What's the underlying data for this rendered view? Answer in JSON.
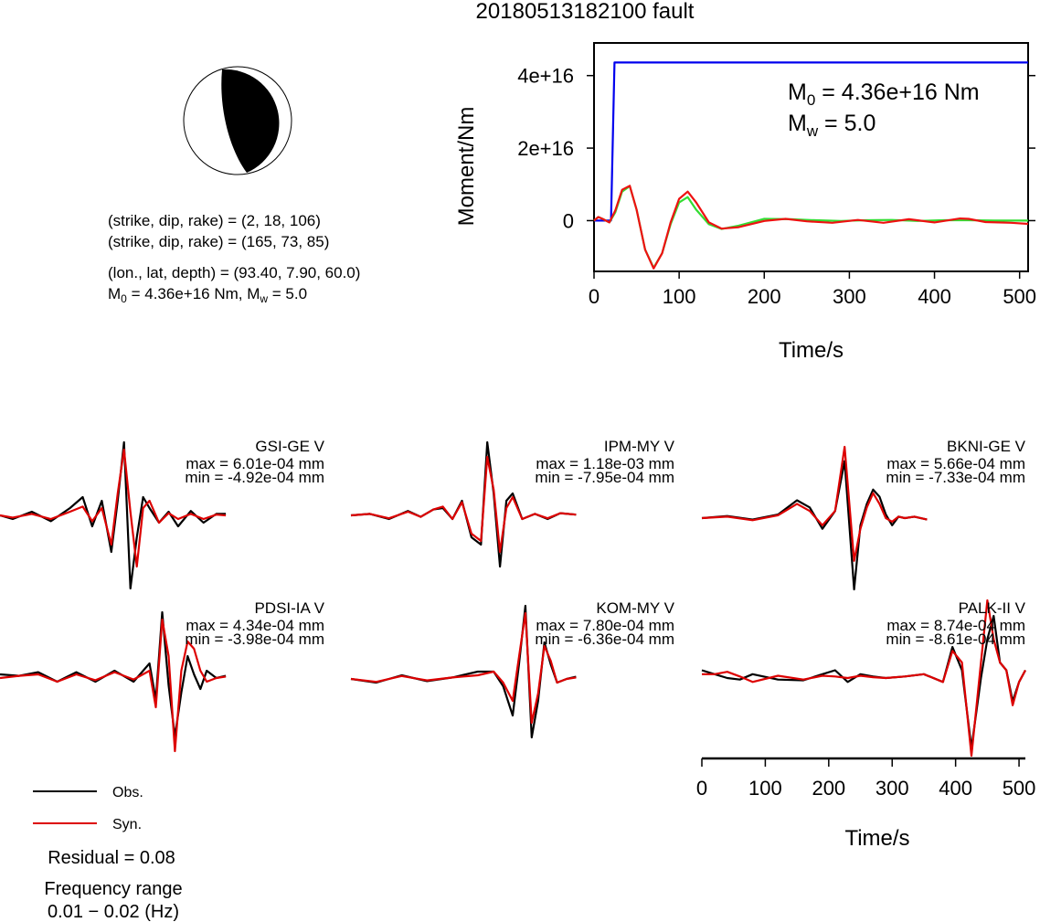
{
  "title": "20180513182100 fault",
  "focal_mechanism": {
    "strike_dip_rake_1": "(strike, dip, rake) = (2, 18, 106)",
    "strike_dip_rake_2": "(strike, dip, rake) = (165, 73, 85)",
    "location": "(lon., lat, depth) = (93.40, 7.90, 60.0)",
    "moment_prefix": "M",
    "moment_sub": "0",
    "moment_mid": " = 4.36e+16 Nm, M",
    "mw_sub": "w",
    "mw_suffix": " = 5.0"
  },
  "chart_data": [
    {
      "type": "line",
      "title": "",
      "xlabel": "Time/s",
      "ylabel": "Moment/Nm",
      "xlim": [
        0,
        510
      ],
      "ylim": [
        -1.4e+16,
        4.9e+16
      ],
      "x_ticks": [
        0,
        100,
        200,
        300,
        400,
        500
      ],
      "x_tick_labels": [
        "0",
        "100",
        "200",
        "300",
        "400",
        "500"
      ],
      "y_ticks": [
        0,
        2e+16,
        4e+16
      ],
      "y_tick_labels": [
        "0",
        "2e+16",
        "4e+16"
      ],
      "annotation_m0": {
        "prefix": "M",
        "sub": "0",
        "suffix": " = 4.36e+16 Nm"
      },
      "annotation_mw": {
        "prefix": "M",
        "sub": "w",
        "suffix": " = 5.0"
      },
      "series": [
        {
          "color": "#0000ee",
          "x": [
            0,
            20,
            24,
            510
          ],
          "y": [
            0,
            0,
            4.36e+16,
            4.36e+16
          ]
        },
        {
          "color": "#33dd33",
          "x": [
            0,
            5,
            10,
            18,
            25,
            33,
            42,
            50,
            60,
            70,
            80,
            90,
            100,
            110,
            120,
            135,
            150,
            170,
            200,
            230,
            260,
            290,
            320,
            350,
            380,
            410,
            440,
            470,
            510
          ],
          "y": [
            0,
            1000000000000000.0,
            500000000000000.0,
            -500000000000000.0,
            2300000000000000.0,
            8000000000000000.0,
            9500000000000000.0,
            3000000000000000.0,
            -8000000000000000.0,
            -1.3e+16,
            -9000000000000000.0,
            -1000000000000000.0,
            5000000000000000.0,
            6500000000000000.0,
            3000000000000000.0,
            -1000000000000000.0,
            -2300000000000000.0,
            -1400000000000000.0,
            500000000000000.0,
            400000000000000.0,
            100000000000000.0,
            -100000000000000.0,
            100000000000000.0,
            200000000000000.0,
            -100000000000000.0,
            100000000000000.0,
            100000000000000.0,
            0,
            0
          ]
        },
        {
          "color": "#ee1111",
          "x": [
            0,
            5,
            10,
            18,
            25,
            33,
            42,
            50,
            60,
            70,
            80,
            90,
            100,
            110,
            120,
            135,
            150,
            170,
            200,
            225,
            250,
            280,
            310,
            340,
            370,
            400,
            430,
            440,
            460,
            490,
            510
          ],
          "y": [
            0,
            1000000000000000.0,
            500000000000000.0,
            -500000000000000.0,
            2800000000000000.0,
            8500000000000000.0,
            9600000000000000.0,
            3000000000000000.0,
            -8000000000000000.0,
            -1.32e+16,
            -9000000000000000.0,
            -500000000000000.0,
            6000000000000000.0,
            8000000000000000.0,
            5000000000000000.0,
            -500000000000000.0,
            -2200000000000000.0,
            -1800000000000000.0,
            -100000000000000.0,
            500000000000000.0,
            -200000000000000.0,
            -600000000000000.0,
            200000000000000.0,
            -600000000000000.0,
            400000000000000.0,
            -500000000000000.0,
            600000000000000.0,
            500000000000000.0,
            -400000000000000.0,
            -600000000000000.0,
            -900000000000000.0
          ]
        }
      ]
    },
    {
      "type": "line",
      "title": "GSI-GE V",
      "annotations": [
        "max = 6.01e-04 mm",
        "min = -4.92e-04 mm"
      ],
      "xlim": [
        0,
        510
      ],
      "ylim": [
        -1,
        1
      ],
      "series": [
        {
          "name": "Obs.",
          "color": "#000000",
          "x": [
            0,
            20,
            50,
            80,
            110,
            130,
            145,
            160,
            175,
            185,
            195,
            205,
            215,
            225,
            235,
            250,
            265,
            280,
            300,
            320,
            340,
            355
          ],
          "y": [
            0,
            -0.05,
            0.05,
            -0.08,
            0.1,
            0.25,
            -0.15,
            0.2,
            -0.5,
            0.2,
            1.0,
            -1.0,
            -0.3,
            0.25,
            0.1,
            -0.1,
            0.05,
            -0.15,
            0.06,
            -0.1,
            0.02,
            0.02
          ]
        },
        {
          "name": "Syn.",
          "color": "#dd0000",
          "x": [
            0,
            20,
            50,
            80,
            110,
            130,
            145,
            160,
            175,
            185,
            195,
            205,
            215,
            225,
            235,
            250,
            265,
            280,
            300,
            320,
            340,
            355
          ],
          "y": [
            0,
            -0.03,
            0.02,
            -0.05,
            0.05,
            0.12,
            -0.08,
            0.1,
            -0.4,
            0.3,
            0.9,
            0.05,
            -0.7,
            0.1,
            0.2,
            -0.1,
            0.03,
            -0.05,
            0.02,
            -0.05,
            0.01,
            0
          ]
        }
      ]
    },
    {
      "type": "line",
      "title": "IPM-MY V",
      "annotations": [
        "max = 1.18e-03 mm",
        "min = -7.95e-04 mm"
      ],
      "xlim": [
        0,
        510
      ],
      "ylim": [
        -1,
        1
      ],
      "series": [
        {
          "name": "Obs.",
          "color": "#000000",
          "x": [
            0,
            30,
            60,
            90,
            110,
            130,
            145,
            160,
            175,
            190,
            205,
            215,
            225,
            235,
            245,
            255,
            270,
            290,
            310,
            330,
            355
          ],
          "y": [
            0,
            0.02,
            -0.05,
            0.06,
            -0.02,
            0.08,
            0.1,
            -0.05,
            0.2,
            -0.3,
            -0.4,
            1.0,
            0.3,
            -0.7,
            0.2,
            0.3,
            -0.05,
            0.02,
            -0.05,
            0.03,
            0.01
          ]
        },
        {
          "name": "Syn.",
          "color": "#dd0000",
          "x": [
            0,
            30,
            60,
            90,
            110,
            130,
            145,
            160,
            175,
            190,
            205,
            215,
            225,
            235,
            245,
            255,
            270,
            290,
            310,
            330,
            355
          ],
          "y": [
            0,
            0.02,
            -0.04,
            0.05,
            -0.02,
            0.08,
            0.12,
            -0.05,
            0.18,
            -0.25,
            -0.35,
            0.8,
            0.35,
            -0.5,
            0.1,
            0.25,
            -0.05,
            0.02,
            -0.04,
            0.03,
            0.01
          ]
        }
      ]
    },
    {
      "type": "line",
      "title": "BKNI-GE V",
      "annotations": [
        "max = 5.66e-04 mm",
        "min = -7.33e-04 mm"
      ],
      "xlim": [
        0,
        510
      ],
      "ylim": [
        -1,
        1
      ],
      "series": [
        {
          "name": "Obs.",
          "color": "#000000",
          "x": [
            0,
            40,
            80,
            120,
            150,
            170,
            190,
            210,
            225,
            240,
            250,
            260,
            270,
            280,
            290,
            300,
            310,
            320,
            335,
            355
          ],
          "y": [
            0,
            0.03,
            -0.02,
            0.05,
            0.25,
            0.15,
            -0.15,
            0.1,
            0.8,
            -1.0,
            -0.1,
            0.2,
            0.4,
            0.3,
            0.05,
            -0.1,
            0.02,
            0,
            0.02,
            -0.02
          ]
        },
        {
          "name": "Syn.",
          "color": "#dd0000",
          "x": [
            0,
            40,
            80,
            120,
            150,
            170,
            190,
            210,
            225,
            240,
            250,
            260,
            270,
            280,
            290,
            300,
            310,
            320,
            335,
            355
          ],
          "y": [
            0,
            0.02,
            -0.03,
            0.04,
            0.2,
            0.1,
            -0.1,
            0.1,
            1.0,
            -0.6,
            -0.15,
            0.15,
            0.35,
            0.2,
            0,
            -0.05,
            0.02,
            0,
            0.02,
            -0.02
          ]
        }
      ]
    },
    {
      "type": "line",
      "title": "PDSI-IA V",
      "annotations": [
        "max = 4.34e-04 mm",
        "min = -3.98e-04 mm"
      ],
      "xlim": [
        0,
        510
      ],
      "ylim": [
        -1,
        1
      ],
      "series": [
        {
          "name": "Obs.",
          "color": "#000000",
          "x": [
            0,
            30,
            60,
            90,
            120,
            150,
            180,
            210,
            235,
            245,
            255,
            265,
            275,
            285,
            295,
            305,
            315,
            325,
            340,
            355
          ],
          "y": [
            0.05,
            0.03,
            0.08,
            -0.05,
            0.08,
            -0.05,
            0.1,
            -0.05,
            0.2,
            -0.3,
            0.9,
            -0.1,
            -0.8,
            -0.2,
            0.3,
            0.05,
            -0.15,
            0.1,
            0,
            0.03
          ]
        },
        {
          "name": "Syn.",
          "color": "#dd0000",
          "x": [
            0,
            30,
            60,
            90,
            120,
            150,
            180,
            210,
            235,
            245,
            255,
            265,
            275,
            285,
            295,
            305,
            315,
            325,
            340,
            355
          ],
          "y": [
            0,
            0.03,
            0.05,
            -0.05,
            0.05,
            -0.03,
            0.08,
            -0.02,
            0.1,
            -0.4,
            0.8,
            0.3,
            -1.0,
            0.1,
            0.5,
            0.4,
            0.1,
            -0.05,
            0,
            0.02
          ]
        }
      ]
    },
    {
      "type": "line",
      "title": "KOM-MY V",
      "annotations": [
        "max = 7.80e-04 mm",
        "min = -6.36e-04 mm"
      ],
      "xlim": [
        0,
        510
      ],
      "ylim": [
        -1,
        1
      ],
      "series": [
        {
          "name": "Obs.",
          "color": "#000000",
          "x": [
            0,
            40,
            80,
            120,
            160,
            200,
            225,
            240,
            255,
            265,
            275,
            285,
            295,
            305,
            315,
            325,
            340,
            355
          ],
          "y": [
            0,
            -0.05,
            0.05,
            -0.03,
            0.02,
            0.1,
            0.1,
            -0.1,
            -0.5,
            0.2,
            1.0,
            -0.8,
            -0.3,
            0.5,
            0.2,
            -0.05,
            0,
            0.03
          ]
        },
        {
          "name": "Syn.",
          "color": "#dd0000",
          "x": [
            0,
            40,
            80,
            120,
            160,
            200,
            225,
            240,
            255,
            265,
            275,
            285,
            295,
            305,
            315,
            325,
            340,
            355
          ],
          "y": [
            0,
            -0.04,
            0.04,
            -0.02,
            0.02,
            0.05,
            0.1,
            -0.05,
            -0.3,
            0.3,
            0.9,
            -0.6,
            -0.2,
            0.45,
            0.25,
            -0.05,
            0,
            0.02
          ]
        }
      ]
    },
    {
      "type": "line",
      "title": "PALK-II V",
      "annotations": [
        "max = 8.74e-04 mm",
        "min = -8.61e-04 mm"
      ],
      "xlim": [
        0,
        510
      ],
      "ylim": [
        -1,
        1
      ],
      "x_ticks": [
        0,
        100,
        200,
        300,
        400,
        500
      ],
      "x_tick_labels": [
        "0",
        "100",
        "200",
        "300",
        "400",
        "500"
      ],
      "xlabel": "Time/s",
      "series": [
        {
          "name": "Obs.",
          "color": "#000000",
          "x": [
            0,
            20,
            40,
            60,
            80,
            120,
            160,
            190,
            210,
            230,
            250,
            270,
            290,
            320,
            350,
            380,
            395,
            410,
            425,
            440,
            450,
            460,
            470,
            480,
            490,
            500,
            510
          ],
          "y": [
            0.1,
            0.05,
            0.0,
            -0.02,
            0.05,
            -0.02,
            -0.03,
            0.05,
            0.1,
            -0.05,
            0.05,
            0.02,
            0,
            0.02,
            0.05,
            -0.05,
            0.4,
            0.1,
            -0.9,
            0.0,
            0.5,
            0.8,
            0.2,
            0.1,
            -0.3,
            -0.05,
            0.1
          ]
        },
        {
          "name": "Syn.",
          "color": "#dd0000",
          "x": [
            0,
            20,
            40,
            60,
            80,
            120,
            160,
            190,
            210,
            230,
            250,
            270,
            290,
            320,
            350,
            380,
            395,
            410,
            425,
            440,
            450,
            460,
            470,
            480,
            490,
            500,
            510
          ],
          "y": [
            0.05,
            0.05,
            0.08,
            0.02,
            -0.05,
            0.03,
            -0.02,
            0.03,
            0.02,
            0,
            0.03,
            0.01,
            0,
            0.02,
            0.05,
            -0.05,
            0.35,
            0.2,
            -1.0,
            0.2,
            1.0,
            0.5,
            0.2,
            0.1,
            -0.35,
            -0.05,
            0.1
          ]
        }
      ]
    }
  ],
  "legend": {
    "obs_label": "Obs.",
    "syn_label": "Syn.",
    "obs_color": "#000000",
    "syn_color": "#dd0000"
  },
  "footer": {
    "residual": "Residual = 0.08",
    "freq_title": "Frequency range",
    "freq_values": "0.01 − 0.02 (Hz)"
  }
}
